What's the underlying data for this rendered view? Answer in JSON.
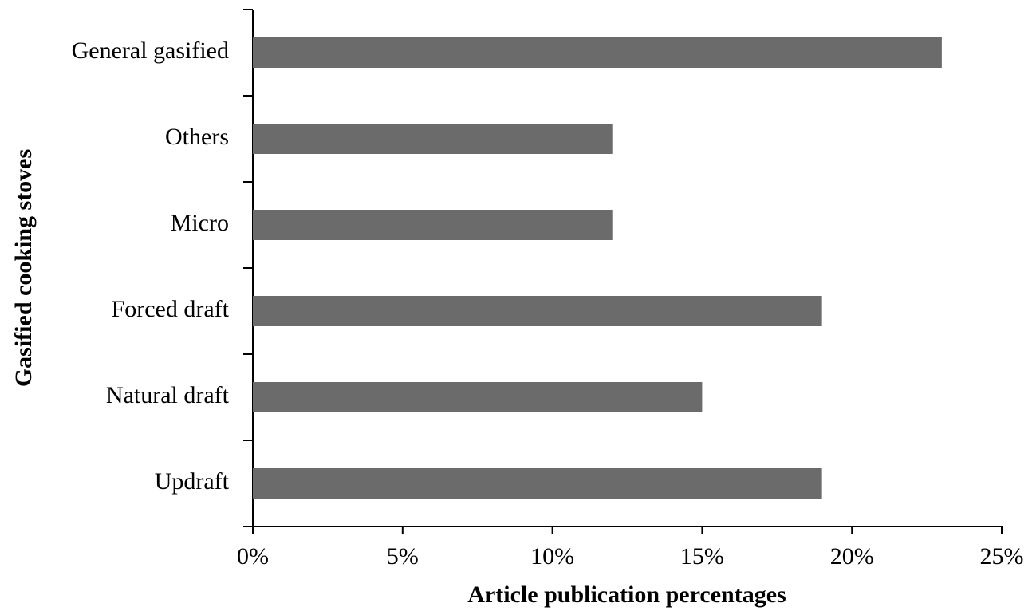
{
  "chart_data": {
    "type": "bar",
    "orientation": "horizontal",
    "x_label": "Article publication percentages",
    "y_label": "Gasified cooking stoves",
    "categories": [
      "General gasified",
      "Others",
      "Micro",
      "Forced draft",
      "Natural draft",
      "Updraft"
    ],
    "values": [
      23,
      12,
      12,
      19,
      15,
      19
    ],
    "color": "#6b6b6b",
    "xlim": [
      0,
      25
    ],
    "xticks": [
      {
        "value": 0,
        "label": "0%"
      },
      {
        "value": 5,
        "label": "5%"
      },
      {
        "value": 10,
        "label": "10%"
      },
      {
        "value": 15,
        "label": "15%"
      },
      {
        "value": 20,
        "label": "20%"
      },
      {
        "value": 25,
        "label": "25%"
      }
    ],
    "grid": false
  }
}
